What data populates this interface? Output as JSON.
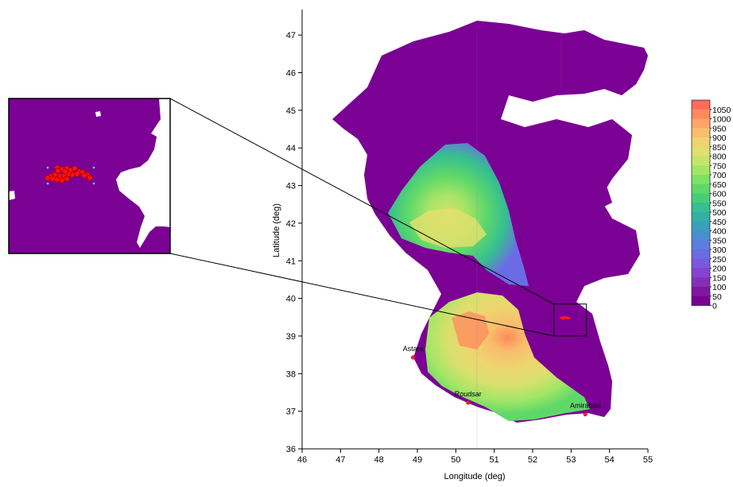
{
  "map": {
    "xlabel": "Longitude (deg)",
    "ylabel": "Latitude (deg)",
    "xticks": [
      "46",
      "47",
      "48",
      "49",
      "50",
      "51",
      "52",
      "53",
      "54",
      "55"
    ],
    "yticks": [
      "36",
      "37",
      "38",
      "39",
      "40",
      "41",
      "42",
      "43",
      "44",
      "45",
      "46",
      "47"
    ],
    "x_range_deg": [
      46,
      55
    ],
    "y_range_deg": [
      36,
      47.5
    ],
    "land_color": "#ffffff",
    "shallow_color": "#7b0094",
    "zoom_box_deg": {
      "lon": [
        52.55,
        53.4
      ],
      "lat": [
        39.0,
        39.85
      ]
    },
    "stations": [
      {
        "name": "Astara",
        "lon": 48.89,
        "lat": 38.43
      },
      {
        "name": "Roudsar",
        "lon": 50.32,
        "lat": 37.23
      },
      {
        "name": "Amirabad",
        "lon": 53.37,
        "lat": 36.92
      }
    ],
    "observation_points_deg": [
      {
        "lon": 52.74,
        "lat": 39.48
      },
      {
        "lon": 52.76,
        "lat": 39.49
      },
      {
        "lon": 52.78,
        "lat": 39.47
      },
      {
        "lon": 52.8,
        "lat": 39.5
      },
      {
        "lon": 52.82,
        "lat": 39.48
      },
      {
        "lon": 52.84,
        "lat": 39.49
      },
      {
        "lon": 52.86,
        "lat": 39.47
      },
      {
        "lon": 52.88,
        "lat": 39.48
      },
      {
        "lon": 52.9,
        "lat": 39.49
      },
      {
        "lon": 52.92,
        "lat": 39.47
      },
      {
        "lon": 52.79,
        "lat": 39.46
      },
      {
        "lon": 52.85,
        "lat": 39.51
      },
      {
        "lon": 52.95,
        "lat": 39.48
      }
    ]
  },
  "colorbar": {
    "labels": [
      "1050",
      "1000",
      "950",
      "900",
      "850",
      "800",
      "750",
      "700",
      "650",
      "600",
      "550",
      "500",
      "450",
      "400",
      "350",
      "300",
      "250",
      "200",
      "150",
      "100",
      "50",
      "0"
    ],
    "colors": [
      "#ff6b5c",
      "#ff8a5e",
      "#ffa566",
      "#f9bd6c",
      "#eed56f",
      "#dfe06d",
      "#c5e56a",
      "#a2e666",
      "#7fe164",
      "#5fd86a",
      "#46cd7b",
      "#36bf90",
      "#33b0a6",
      "#3a9fbd",
      "#4a8ed2",
      "#5b7de0",
      "#6c6be6",
      "#7b58e0",
      "#8344cf",
      "#8430b6",
      "#7f17a0",
      "#780092"
    ]
  },
  "inset": {
    "points": [
      {
        "x": 72,
        "y": 211
      },
      {
        "x": 78,
        "y": 213
      },
      {
        "x": 84,
        "y": 212
      },
      {
        "x": 89,
        "y": 214
      },
      {
        "x": 94,
        "y": 212
      },
      {
        "x": 100,
        "y": 216
      },
      {
        "x": 97,
        "y": 219
      },
      {
        "x": 91,
        "y": 220
      },
      {
        "x": 86,
        "y": 219
      },
      {
        "x": 80,
        "y": 221
      },
      {
        "x": 75,
        "y": 222
      },
      {
        "x": 69,
        "y": 220
      },
      {
        "x": 64,
        "y": 222
      },
      {
        "x": 60,
        "y": 224
      },
      {
        "x": 66,
        "y": 225
      },
      {
        "x": 72,
        "y": 226
      },
      {
        "x": 78,
        "y": 227
      },
      {
        "x": 84,
        "y": 225
      },
      {
        "x": 104,
        "y": 217
      },
      {
        "x": 110,
        "y": 220
      },
      {
        "x": 113,
        "y": 224
      },
      {
        "x": 73,
        "y": 215
      },
      {
        "x": 106,
        "y": 221
      },
      {
        "x": 82,
        "y": 216
      }
    ],
    "crosses": [
      {
        "x": 60,
        "y": 211
      },
      {
        "x": 118,
        "y": 211
      },
      {
        "x": 60,
        "y": 231
      },
      {
        "x": 118,
        "y": 231
      }
    ]
  }
}
